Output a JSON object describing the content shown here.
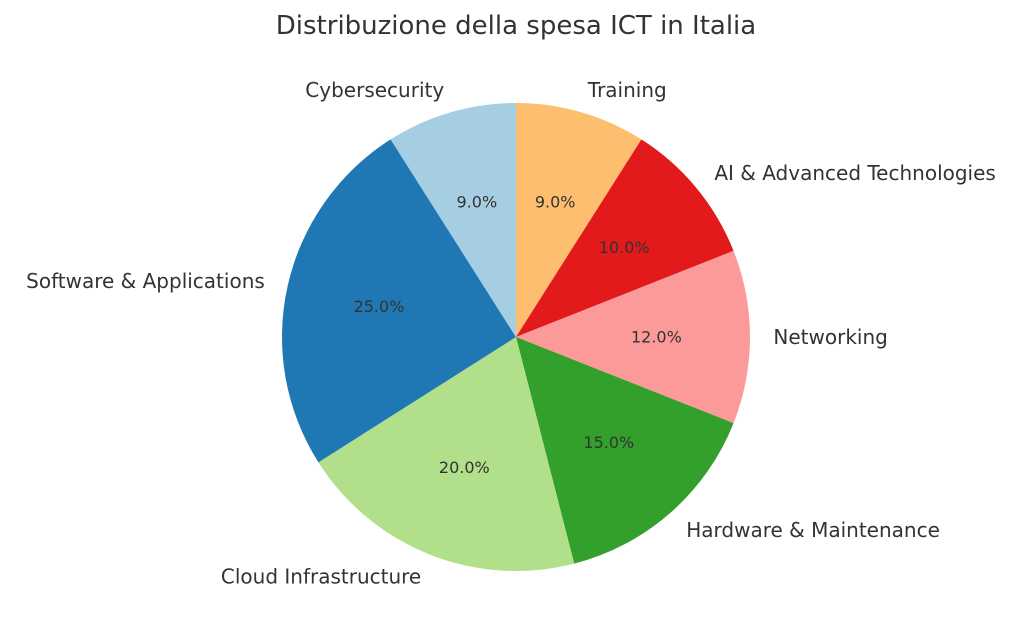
{
  "chart_data": {
    "type": "pie",
    "title": "Distribuzione della spesa ICT in Italia",
    "start_angle_deg": 90,
    "direction": "clockwise",
    "slices": [
      {
        "label": "Training",
        "value": 9.0,
        "pct_label": "9.0%",
        "color": "#fdbf6f"
      },
      {
        "label": "AI & Advanced Technologies",
        "value": 10.0,
        "pct_label": "10.0%",
        "color": "#e31a1c"
      },
      {
        "label": "Networking",
        "value": 12.0,
        "pct_label": "12.0%",
        "color": "#fb9a99"
      },
      {
        "label": "Hardware & Maintenance",
        "value": 15.0,
        "pct_label": "15.0%",
        "color": "#33a02c"
      },
      {
        "label": "Cloud Infrastructure",
        "value": 20.0,
        "pct_label": "20.0%",
        "color": "#b2df8a"
      },
      {
        "label": "Software & Applications",
        "value": 25.0,
        "pct_label": "25.0%",
        "color": "#1f78b4"
      },
      {
        "label": "Cybersecurity",
        "value": 9.0,
        "pct_label": "9.0%",
        "color": "#a6cee3"
      }
    ]
  }
}
